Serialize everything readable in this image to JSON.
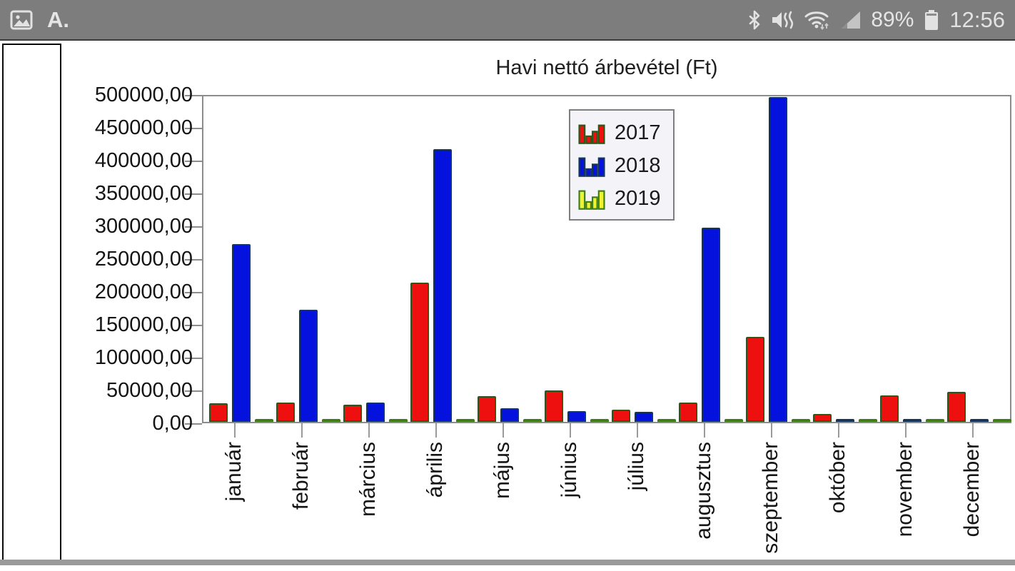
{
  "status_bar": {
    "notification_a_label": "A.",
    "battery_percent": "89%",
    "time": "12:56",
    "icons": [
      "image-icon",
      "font-a-icon",
      "bluetooth-icon",
      "mute-vibrate-icon",
      "wifi-icon",
      "cell-signal-icon",
      "battery-icon"
    ],
    "bg_color": "#7d7d7d",
    "icon_color": "#e2e2e2"
  },
  "chart_data": {
    "type": "bar",
    "title": "Havi nettó árbevétel (Ft)",
    "categories": [
      "január",
      "február",
      "március",
      "április",
      "május",
      "június",
      "július",
      "augusztus",
      "szeptember",
      "október",
      "november",
      "december"
    ],
    "series": [
      {
        "name": "2017",
        "color": "#ee0f0f",
        "stroke": "#2f5619",
        "values": [
          28000,
          30000,
          26000,
          214000,
          40000,
          48000,
          18500,
          30000,
          131000,
          12000,
          41000,
          46000
        ]
      },
      {
        "name": "2018",
        "color": "#0512dd",
        "stroke": "#16355c",
        "values": [
          273000,
          172000,
          30000,
          419000,
          21000,
          16000,
          15000,
          298000,
          499000,
          2500,
          2500,
          2500
        ]
      },
      {
        "name": "2019",
        "color": "#eef233",
        "stroke": "#3f7d16",
        "values": [
          2500,
          2500,
          2500,
          2500,
          2500,
          2500,
          2500,
          2500,
          2500,
          2500,
          2500,
          2500
        ]
      }
    ],
    "ylim": [
      0,
      500000
    ],
    "ytick_step": 50000,
    "ytick_labels_top_to_bottom": [
      "500000,00",
      "450000,00",
      "400000,00",
      "350000,00",
      "300000,00",
      "250000,00",
      "200000,00",
      "150000,00",
      "100000,00",
      "50000,00",
      "0,00"
    ],
    "xlabel": "",
    "ylabel": "",
    "grid": false,
    "legend_position": "upper-middle-right"
  }
}
